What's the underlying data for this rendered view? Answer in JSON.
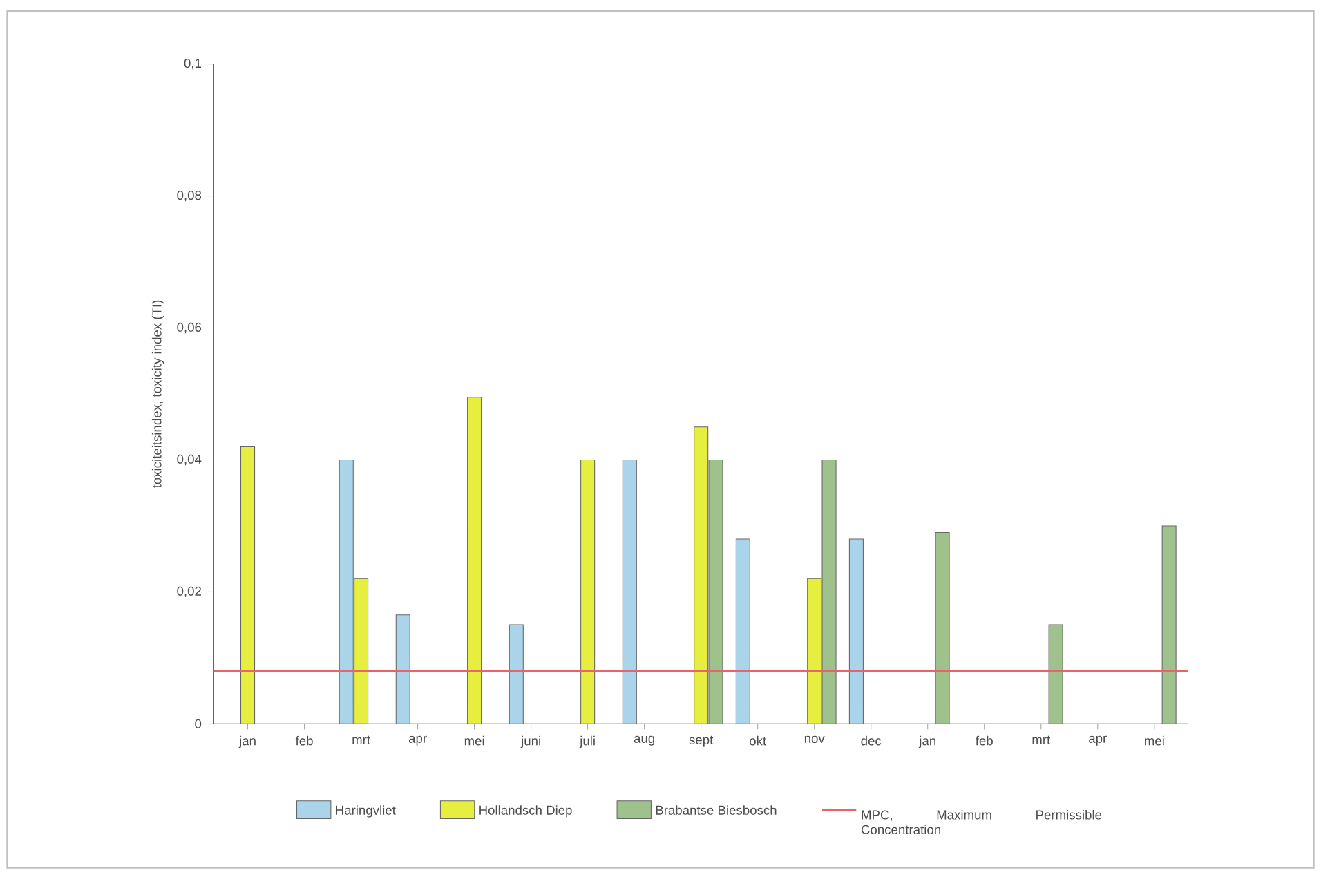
{
  "chart_data": {
    "type": "bar",
    "ylabel": "toxiciteitsindex, toxicity index (TI)",
    "categories": [
      "jan",
      "feb",
      "mrt",
      "apr",
      "mei",
      "juni",
      "juli",
      "aug",
      "sept",
      "okt",
      "nov",
      "dec",
      "jan",
      "feb",
      "mrt",
      "apr",
      "mei"
    ],
    "series": [
      {
        "name": "Haringvliet",
        "color": "#a9d4ea",
        "values": [
          null,
          null,
          0.04,
          0.0165,
          null,
          0.015,
          null,
          0.04,
          null,
          0.028,
          null,
          0.028,
          null,
          null,
          null,
          null,
          null
        ]
      },
      {
        "name": "Hollandsch Diep",
        "color": "#e6ef3f",
        "values": [
          0.042,
          null,
          0.022,
          null,
          0.0495,
          null,
          0.04,
          null,
          0.045,
          null,
          0.022,
          null,
          null,
          null,
          null,
          null,
          null
        ]
      },
      {
        "name": "Brabantse Biesbosch",
        "color": "#9fc28d",
        "values": [
          null,
          null,
          null,
          null,
          null,
          null,
          null,
          null,
          0.04,
          null,
          0.04,
          null,
          0.029,
          null,
          0.015,
          null,
          0.03
        ]
      }
    ],
    "ylim": [
      0,
      0.1
    ],
    "yticks": [
      0,
      {
        "value": 0.02,
        "label": "0,02"
      },
      {
        "value": 0.04,
        "label": "0,04"
      },
      {
        "value": 0.06,
        "label": "0,06"
      },
      {
        "value": 0.08,
        "label": "0,08"
      },
      {
        "value": 0.1,
        "label": "0,1"
      }
    ],
    "ref_lines": [
      {
        "axis": "y",
        "value": 0.008,
        "label": "MPC, Maximum Permissible Concentration",
        "color": "#e8636b"
      }
    ],
    "legend": "bottom"
  }
}
